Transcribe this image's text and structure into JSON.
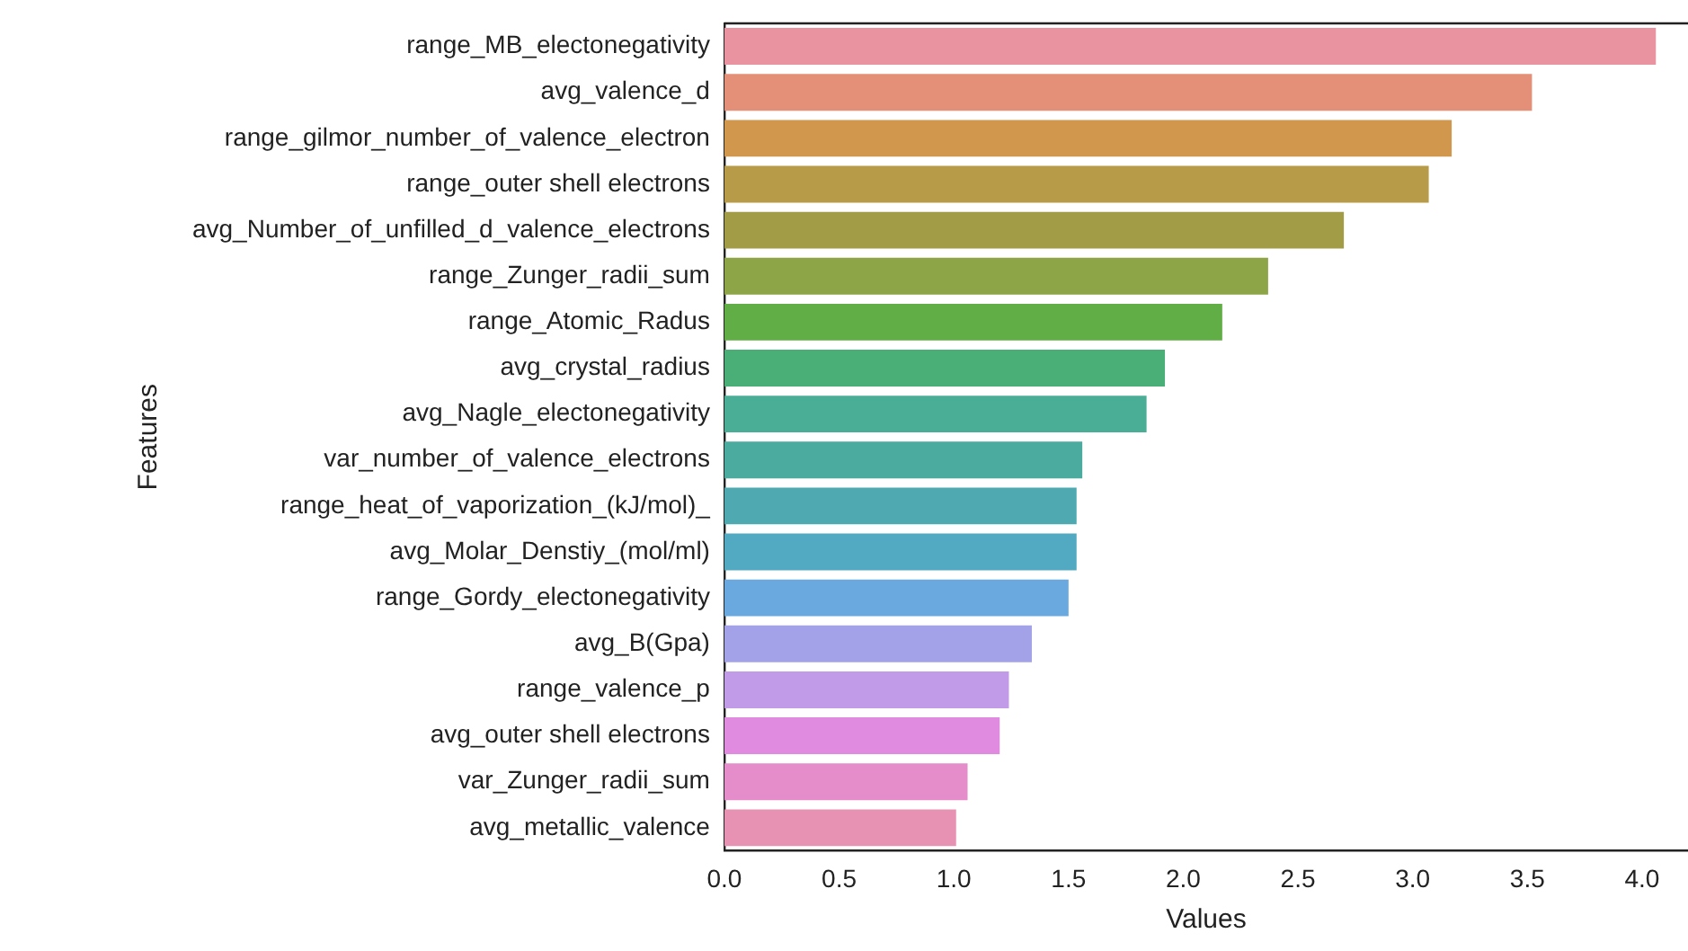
{
  "chart_data": {
    "type": "bar",
    "orientation": "horizontal",
    "xlabel": "Values",
    "ylabel": "Features",
    "categories": [
      "range_MB_electonegativity",
      "avg_valence_d",
      "range_gilmor_number_of_valence_electron",
      "range_outer shell electrons",
      "avg_Number_of_unfilled_d_valence_electrons",
      "range_Zunger_radii_sum",
      "range_Atomic_Radus",
      "avg_crystal_radius",
      "avg_Nagle_electonegativity",
      "var_number_of_valence_electrons",
      "range_heat_of_vaporization_(kJ/mol)_",
      "avg_Molar_Denstiy_(mol/ml)",
      "range_Gordy_electonegativity",
      "avg_B(Gpa)",
      "range_valence_p",
      "avg_outer shell electrons",
      "var_Zunger_radii_sum",
      "avg_metallic_valence"
    ],
    "values": [
      4.06,
      3.52,
      3.17,
      3.07,
      2.7,
      2.37,
      2.17,
      1.92,
      1.84,
      1.56,
      1.535,
      1.535,
      1.5,
      1.34,
      1.24,
      1.2,
      1.06,
      1.01
    ],
    "colors": [
      "#e8939f",
      "#e48f78",
      "#d0974d",
      "#b79b48",
      "#a39c47",
      "#8da546",
      "#61ad46",
      "#4aae77",
      "#4aad95",
      "#4bab9f",
      "#4eaab0",
      "#52a9c2",
      "#6aa9df",
      "#a3a2e8",
      "#c19be8",
      "#e08be0",
      "#e58ccb",
      "#e792b3"
    ],
    "xlim": [
      0,
      4.2
    ],
    "xticks": [
      {
        "value": 0,
        "label": "0.0"
      },
      {
        "value": 0.5,
        "label": "0.5"
      },
      {
        "value": 1,
        "label": "1.0"
      },
      {
        "value": 1.5,
        "label": "1.5"
      },
      {
        "value": 2,
        "label": "2.0"
      },
      {
        "value": 2.5,
        "label": "2.5"
      },
      {
        "value": 3,
        "label": "3.0"
      },
      {
        "value": 3.5,
        "label": "3.5"
      },
      {
        "value": 4,
        "label": "4.0"
      }
    ],
    "grid": false,
    "legend": false
  }
}
